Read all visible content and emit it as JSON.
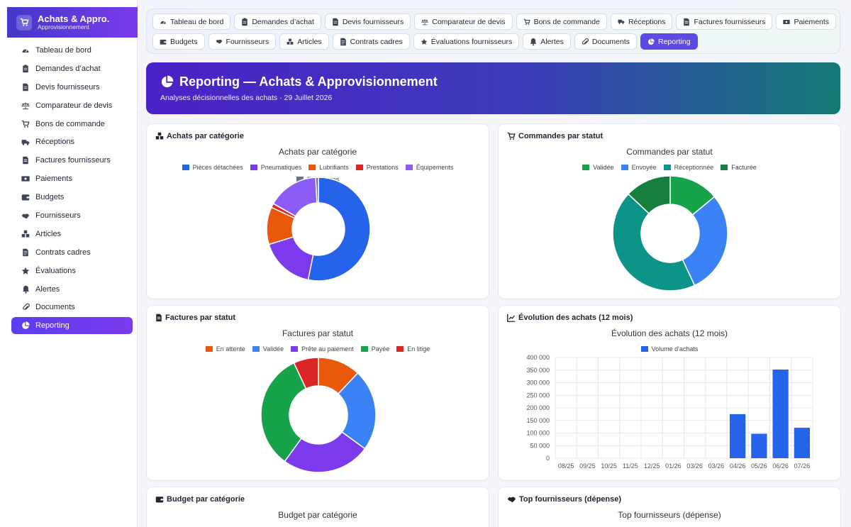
{
  "brand": {
    "title": "Achats & Appro.",
    "subtitle": "Approvisionnement"
  },
  "sidebar": {
    "items": [
      {
        "label": "Tableau de bord",
        "icon": "gauge-icon"
      },
      {
        "label": "Demandes d’achat",
        "icon": "clipboard-icon"
      },
      {
        "label": "Devis fournisseurs",
        "icon": "file-icon"
      },
      {
        "label": "Comparateur de devis",
        "icon": "scale-icon"
      },
      {
        "label": "Bons de commande",
        "icon": "cart-icon"
      },
      {
        "label": "Réceptions",
        "icon": "truck-icon"
      },
      {
        "label": "Factures fournisseurs",
        "icon": "invoice-icon"
      },
      {
        "label": "Paiements",
        "icon": "money-icon"
      },
      {
        "label": "Budgets",
        "icon": "wallet-icon"
      },
      {
        "label": "Fournisseurs",
        "icon": "handshake-icon"
      },
      {
        "label": "Articles",
        "icon": "boxes-icon"
      },
      {
        "label": "Contrats cadres",
        "icon": "contract-icon"
      },
      {
        "label": "Évaluations",
        "icon": "star-icon"
      },
      {
        "label": "Alertes",
        "icon": "bell-icon"
      },
      {
        "label": "Documents",
        "icon": "paperclip-icon"
      },
      {
        "label": "Reporting",
        "icon": "pie-icon",
        "active": true
      }
    ]
  },
  "tabs": {
    "row1": [
      {
        "label": "Tableau de bord",
        "icon": "gauge-icon"
      },
      {
        "label": "Demandes d’achat",
        "icon": "clipboard-icon"
      },
      {
        "label": "Devis fournisseurs",
        "icon": "file-icon"
      },
      {
        "label": "Comparateur de devis",
        "icon": "scale-icon"
      },
      {
        "label": "Bons de commande",
        "icon": "cart-icon"
      },
      {
        "label": "Réceptions",
        "icon": "truck-icon"
      },
      {
        "label": "Factures fournisseurs",
        "icon": "invoice-icon"
      },
      {
        "label": "Paiements",
        "icon": "money-icon"
      }
    ],
    "row2": [
      {
        "label": "Budgets",
        "icon": "wallet-icon"
      },
      {
        "label": "Fournisseurs",
        "icon": "handshake-icon"
      },
      {
        "label": "Articles",
        "icon": "boxes-icon"
      },
      {
        "label": "Contrats cadres",
        "icon": "contract-icon"
      },
      {
        "label": "Évaluations fournisseurs",
        "icon": "star-icon"
      },
      {
        "label": "Alertes",
        "icon": "bell-icon"
      },
      {
        "label": "Documents",
        "icon": "paperclip-icon"
      },
      {
        "label": "Reporting",
        "icon": "pie-icon",
        "active": true
      }
    ]
  },
  "hero": {
    "title": "Reporting — Achats & Approvisionnement",
    "subtitle": "Analyses décisionnelles des achats · 29 Juillet 2026"
  },
  "cards": {
    "achats": {
      "header": "Achats par catégorie"
    },
    "commandes": {
      "header": "Commandes par statut"
    },
    "factures": {
      "header": "Factures par statut"
    },
    "evolution": {
      "header": "Évolution des achats (12 mois)"
    },
    "budget": {
      "header": "Budget par catégorie",
      "chart_title": "Budget par catégorie"
    },
    "top": {
      "header": "Top fournisseurs (dépense)",
      "chart_title": "Top fournisseurs (dépense)"
    }
  },
  "chart_data": [
    {
      "type": "pie",
      "title": "Achats par catégorie",
      "categories": [
        "Pièces détachées",
        "Pneumatiques",
        "Lubrifiants",
        "Prestations",
        "Équipements",
        "Fournitures"
      ],
      "values": [
        50,
        16,
        11,
        1.2,
        15,
        0.8
      ],
      "colors": [
        "#2563eb",
        "#7c3aed",
        "#ea580c",
        "#dc2626",
        "#8b5cf6",
        "#64748b"
      ],
      "legend": "top"
    },
    {
      "type": "pie",
      "title": "Commandes par statut",
      "categories": [
        "Validée",
        "Envoyée",
        "Réceptionnée",
        "Facturée"
      ],
      "values": [
        14,
        29,
        44,
        13
      ],
      "colors": [
        "#16a34a",
        "#3b82f6",
        "#0d9488",
        "#15803d"
      ],
      "legend": "top"
    },
    {
      "type": "pie",
      "title": "Factures par statut",
      "categories": [
        "En attente",
        "Validée",
        "Prête au paiement",
        "Payée",
        "En litige"
      ],
      "values": [
        12,
        23,
        25,
        33,
        7
      ],
      "colors": [
        "#ea580c",
        "#3b82f6",
        "#7c3aed",
        "#16a34a",
        "#dc2626"
      ],
      "legend": "top"
    },
    {
      "type": "bar",
      "title": "Évolution des achats (12 mois)",
      "categories": [
        "08/25",
        "09/25",
        "10/25",
        "11/25",
        "12/25",
        "01/26",
        "03/26",
        "03/26",
        "04/26",
        "05/26",
        "06/26",
        "07/26"
      ],
      "series": [
        {
          "name": "Volume d'achats",
          "values": [
            0,
            0,
            0,
            0,
            0,
            0,
            0,
            0,
            175000,
            97000,
            352000,
            121000
          ]
        }
      ],
      "ylim": [
        0,
        400000
      ],
      "yticks": [
        "400 000",
        "350 000",
        "300 000",
        "250 000",
        "200 000",
        "150 000",
        "100 000",
        "50 000",
        "0"
      ],
      "colors": [
        "#2563eb"
      ],
      "legend": "top",
      "grid": true
    }
  ]
}
